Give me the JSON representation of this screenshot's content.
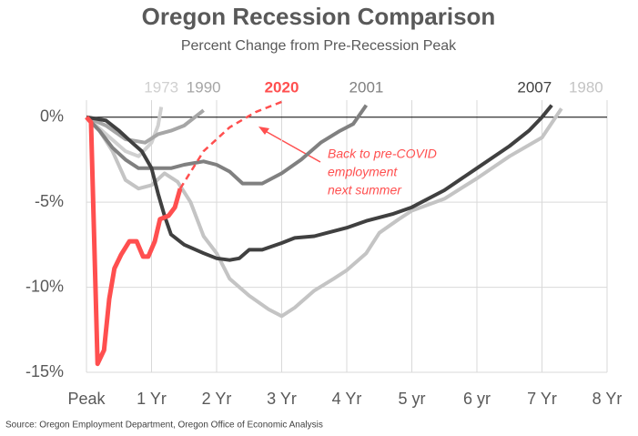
{
  "chart_data": {
    "type": "line",
    "title": "Oregon Recession Comparison",
    "subtitle": "Percent Change from Pre-Recession Peak",
    "source": "Source: Oregon Employment Department, Oregon Office of Economic Analysis",
    "annotation": [
      "Back to pre-COVID",
      "employment",
      "next summer"
    ],
    "xlim": [
      0,
      8
    ],
    "xticks": [
      {
        "value": 0,
        "label": "Peak"
      },
      {
        "value": 1,
        "label": "1 Yr"
      },
      {
        "value": 2,
        "label": "2 Yr"
      },
      {
        "value": 3,
        "label": "3 Yr"
      },
      {
        "value": 4,
        "label": "4 Yr"
      },
      {
        "value": 5,
        "label": "5 yr"
      },
      {
        "value": 6,
        "label": "6 yr"
      },
      {
        "value": 7,
        "label": "7 Yr"
      },
      {
        "value": 8,
        "label": "8 Yr"
      }
    ],
    "ylim": [
      -15,
      1
    ],
    "yticks": [
      {
        "value": 0,
        "label": "0%"
      },
      {
        "value": -5,
        "label": "-5%"
      },
      {
        "value": -10,
        "label": "-10%"
      },
      {
        "value": -15,
        "label": "-15%"
      }
    ],
    "grid": true,
    "series": [
      {
        "name": "1973",
        "color": "#d0d0d0",
        "x": [
          0,
          0.3,
          0.6,
          0.8,
          1.0,
          1.1,
          1.15
        ],
        "values": [
          0,
          -1.0,
          -2.0,
          -2.3,
          -1.5,
          -0.5,
          0.6
        ]
      },
      {
        "name": "1990",
        "color": "#a6a6a6",
        "x": [
          0,
          0.3,
          0.6,
          0.9,
          1.1,
          1.3,
          1.5,
          1.8
        ],
        "values": [
          0,
          -0.5,
          -1.3,
          -1.5,
          -1.0,
          -0.8,
          -0.5,
          0.4
        ]
      },
      {
        "name": "1980",
        "color": "#c4c4c4",
        "x": [
          0,
          0.2,
          0.4,
          0.6,
          0.8,
          1.0,
          1.2,
          1.4,
          1.6,
          1.8,
          2.0,
          2.2,
          2.5,
          2.8,
          3.0,
          3.2,
          3.5,
          3.8,
          4.0,
          4.3,
          4.5,
          4.8,
          5.0,
          5.5,
          6.0,
          6.5,
          7.0,
          7.3
        ],
        "values": [
          0,
          -0.8,
          -2.0,
          -3.7,
          -4.2,
          -4.0,
          -3.3,
          -3.8,
          -5.0,
          -7.0,
          -8.0,
          -9.5,
          -10.5,
          -11.3,
          -11.7,
          -11.2,
          -10.2,
          -9.5,
          -9.0,
          -8.0,
          -6.8,
          -6.0,
          -5.5,
          -4.8,
          -3.6,
          -2.3,
          -1.2,
          0.5
        ]
      },
      {
        "name": "2001",
        "color": "#808080",
        "x": [
          0,
          0.2,
          0.4,
          0.6,
          0.8,
          1.0,
          1.3,
          1.5,
          1.8,
          2.0,
          2.2,
          2.4,
          2.7,
          3.0,
          3.3,
          3.6,
          3.9,
          4.1,
          4.3
        ],
        "values": [
          0,
          -0.8,
          -1.8,
          -2.5,
          -3.0,
          -3.0,
          -3.0,
          -2.8,
          -2.6,
          -2.8,
          -3.2,
          -3.9,
          -3.9,
          -3.3,
          -2.5,
          -1.5,
          -0.8,
          -0.4,
          0.7
        ]
      },
      {
        "name": "2007",
        "color": "#404040",
        "x": [
          0,
          0.3,
          0.5,
          0.7,
          0.85,
          1.0,
          1.1,
          1.2,
          1.3,
          1.5,
          1.8,
          2.0,
          2.2,
          2.35,
          2.5,
          2.7,
          3.0,
          3.2,
          3.5,
          4.0,
          4.3,
          4.7,
          5.0,
          5.5,
          6.0,
          6.5,
          6.8,
          7.0,
          7.15
        ],
        "values": [
          0,
          -0.2,
          -0.8,
          -1.5,
          -2.0,
          -3.0,
          -4.5,
          -5.8,
          -6.9,
          -7.5,
          -8.0,
          -8.3,
          -8.4,
          -8.3,
          -7.8,
          -7.8,
          -7.4,
          -7.1,
          -7.0,
          -6.5,
          -6.1,
          -5.7,
          -5.3,
          -4.3,
          -3.0,
          -1.7,
          -0.8,
          0.0,
          0.7
        ]
      },
      {
        "name": "2020",
        "color": "#ff4f4f",
        "x": [
          0,
          0.07,
          0.17,
          0.27,
          0.35,
          0.43,
          0.53,
          0.66,
          0.77,
          0.87,
          0.95,
          1.05,
          1.13,
          1.26,
          1.36,
          1.44
        ],
        "values": [
          0,
          -0.3,
          -14.5,
          -13.7,
          -10.7,
          -8.9,
          -8.1,
          -7.3,
          -7.3,
          -8.2,
          -8.2,
          -7.3,
          -6.0,
          -5.8,
          -5.3,
          -4.2
        ],
        "projection_x": [
          1.44,
          1.8,
          2.2,
          2.6,
          3.0
        ],
        "projection_values": [
          -4.2,
          -2.0,
          -0.6,
          0.3,
          0.9
        ]
      }
    ]
  }
}
